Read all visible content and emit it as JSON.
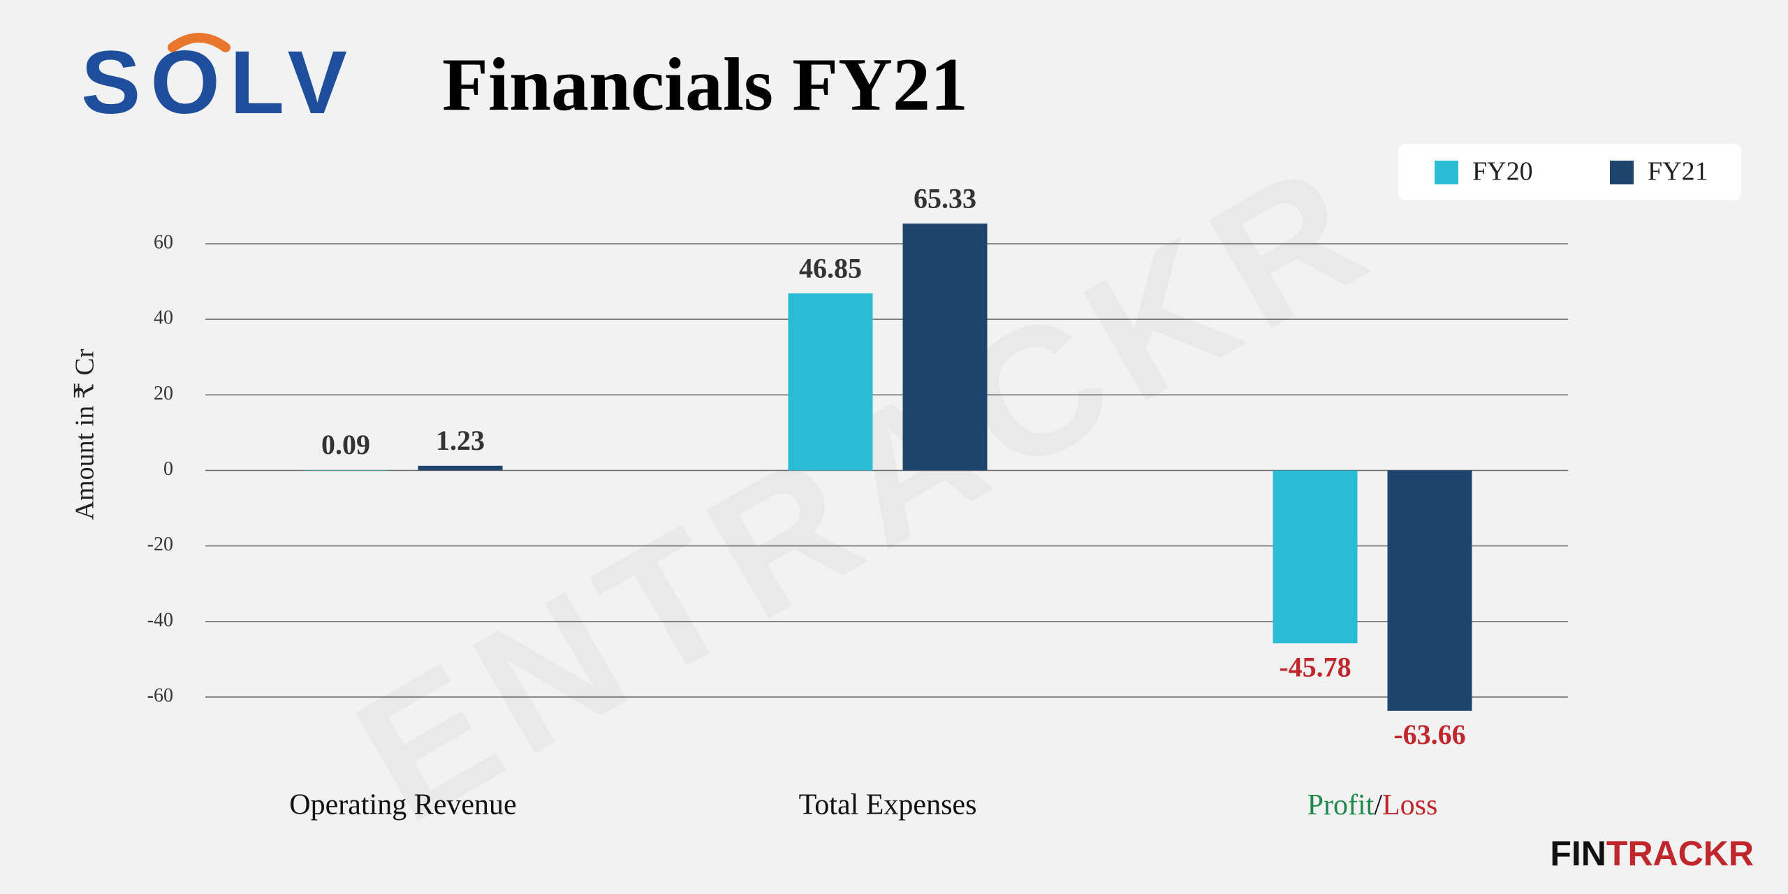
{
  "logo": "SOLV",
  "brand": {
    "parts": [
      "FIN",
      "TRACKR"
    ]
  },
  "watermark": "ENTRACKR",
  "chart_data": {
    "type": "bar",
    "title": "Financials FY21",
    "y_label": "Amount in ₹ Cr",
    "categories": [
      "Operating Revenue",
      "Total Expenses",
      "Profit/Loss"
    ],
    "series": [
      {
        "name": "FY20",
        "color": "#29bcd4",
        "values": [
          0.09,
          46.85,
          -45.78
        ]
      },
      {
        "name": "FY21",
        "color": "#1f446e",
        "values": [
          1.23,
          65.33,
          -63.66
        ]
      }
    ],
    "ylim": [
      -60,
      60
    ],
    "yticks": [
      60,
      40,
      20,
      0,
      -20,
      -40,
      -60
    ],
    "grid": true,
    "legend": "top-right",
    "negative_color": "#c0272d",
    "profit_color": "#1e8a4c"
  }
}
